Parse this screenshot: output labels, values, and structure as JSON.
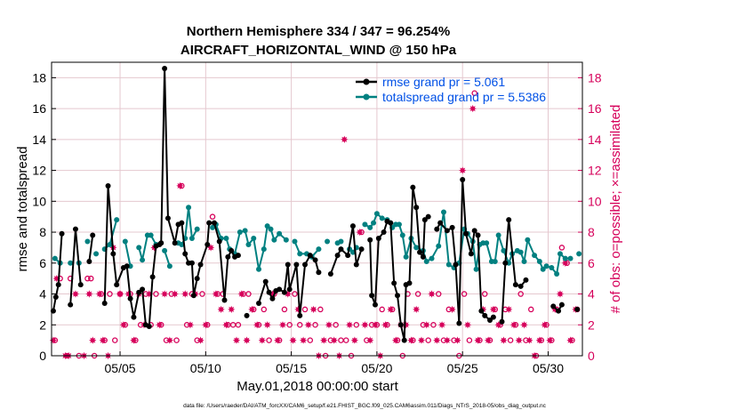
{
  "chart_data": {
    "type": "line",
    "title": "Northern Hemisphere 334 / 347 = 96.254%",
    "subtitle": "AIRCRAFT_HORIZONTAL_WIND @ 150 hPa",
    "xlabel": "May.01,2018 00:00:00 start",
    "ylabel": "rmse and totalspread",
    "y2label": "# of obs: o=possible; ×=assimilated",
    "footer": "data file: /Users/raeder/DAI/ATM_forcXX/CAM6_setup/f.e21.FHIST_BGC.f09_025.CAM6assim.011/Diags_NTrS_2018-05/obs_diag_output.nc",
    "xlim": [
      1.0,
      32.0
    ],
    "ylim": [
      0,
      19
    ],
    "y2lim": [
      0,
      19
    ],
    "xticks": [
      5,
      10,
      15,
      20,
      25,
      30
    ],
    "xticklabels": [
      "05/05",
      "05/10",
      "05/15",
      "05/20",
      "05/25",
      "05/30"
    ],
    "yticks": [
      0,
      2,
      4,
      6,
      8,
      10,
      12,
      14,
      16,
      18
    ],
    "y2ticks": [
      0,
      2,
      4,
      6,
      8,
      10,
      12,
      14,
      16,
      18
    ],
    "grid": true,
    "legend_position": "top-right",
    "series": [
      {
        "name": "rmse grand pr = 5.061",
        "color": "#000000",
        "marker": "dot",
        "x": [
          1.1,
          1.25,
          1.4,
          1.6,
          2.1,
          2.4,
          2.7,
          3.2,
          3.4,
          4.1,
          4.3,
          4.6,
          4.8,
          5.2,
          5.4,
          5.6,
          5.8,
          6.1,
          6.3,
          6.5,
          6.7,
          6.9,
          7.1,
          7.3,
          7.4,
          7.6,
          7.8,
          8.2,
          8.4,
          8.6,
          8.8,
          9.0,
          9.2,
          9.3,
          9.5,
          9.7,
          10.1,
          10.2,
          10.5,
          10.8,
          11.1,
          11.3,
          11.5,
          11.7,
          11.9,
          12.4,
          13.1,
          13.5,
          13.7,
          13.9,
          14.1,
          14.3,
          14.6,
          14.8,
          14.9,
          15.3,
          15.5,
          15.8,
          16.1,
          16.4,
          16.6,
          17.3,
          17.7,
          17.9,
          18.3,
          18.6,
          18.8,
          19.1,
          19.6,
          19.7,
          19.9,
          20.1,
          20.4,
          20.6,
          20.8,
          21.0,
          21.2,
          21.4,
          21.6,
          21.7,
          21.9,
          22.1,
          22.3,
          22.5,
          22.7,
          22.8,
          23.0,
          23.5,
          23.7,
          24.1,
          24.4,
          24.6,
          24.8,
          25.0,
          25.2,
          25.5,
          25.7,
          25.9,
          26.1,
          26.3,
          26.6,
          26.8,
          27.3,
          27.5,
          27.7,
          28.1,
          28.4,
          28.7,
          30.3,
          30.6,
          30.8,
          31.7
        ],
        "y": [
          2.9,
          3.8,
          4.6,
          7.9,
          3.3,
          8.2,
          4.6,
          6.1,
          7.8,
          3.4,
          11.0,
          6.6,
          4.6,
          5.7,
          5.8,
          3.7,
          2.5,
          4.1,
          4.3,
          2.0,
          1.9,
          5.1,
          7.1,
          7.2,
          7.3,
          18.6,
          8.9,
          7.3,
          8.5,
          8.6,
          6.6,
          6.0,
          6.0,
          3.9,
          5.0,
          5.9,
          7.2,
          8.6,
          8.6,
          7.4,
          3.6,
          6.4,
          6.8,
          6.4,
          6.5,
          2.6,
          3.4,
          4.8,
          4.1,
          3.7,
          4.2,
          4.3,
          4.1,
          5.9,
          4.3,
          5.9,
          2.6,
          5.9,
          6.5,
          6.2,
          5.4,
          5.3,
          6.5,
          6.9,
          6.5,
          8.4,
          5.9,
          6.9,
          7.5,
          3.9,
          3.3,
          7.6,
          8.0,
          8.7,
          8.6,
          4.7,
          3.9,
          2.0,
          1.0,
          4.6,
          4.7,
          10.9,
          9.6,
          6.7,
          6.4,
          8.8,
          9.0,
          8.2,
          8.6,
          8.1,
          8.3,
          5.9,
          2.1,
          11.4,
          7.9,
          6.6,
          8.1,
          7.8,
          2.9,
          2.6,
          2.3,
          2.5,
          2.2,
          6.0,
          8.8,
          4.6,
          4.5,
          4.9,
          3.2,
          2.9,
          3.3,
          3.0
        ]
      },
      {
        "name": "totalspread grand pr = 5.5386",
        "color": "#008080",
        "marker": "dot",
        "x": [
          1.2,
          1.5,
          2.1,
          2.6,
          3.1,
          3.6,
          4.1,
          4.4,
          4.8,
          5.3,
          5.6,
          6.1,
          6.3,
          6.6,
          6.8,
          7.1,
          7.6,
          7.9,
          8.4,
          8.6,
          8.8,
          9.0,
          9.2,
          9.5,
          10.4,
          10.6,
          10.9,
          11.2,
          11.4,
          11.7,
          12.0,
          12.3,
          12.5,
          12.8,
          13.1,
          13.4,
          13.6,
          13.8,
          14.0,
          14.3,
          14.7,
          15.2,
          15.5,
          15.9,
          16.2,
          16.6,
          17.1,
          17.7,
          17.9,
          18.4,
          18.6,
          18.8,
          19.3,
          19.6,
          19.8,
          20.0,
          20.3,
          20.6,
          20.9,
          21.1,
          21.3,
          21.5,
          21.7,
          22.0,
          22.3,
          22.7,
          22.9,
          23.2,
          23.6,
          23.9,
          24.2,
          24.5,
          24.8,
          25.1,
          25.3,
          25.6,
          25.8,
          26.0,
          26.2,
          26.4,
          26.7,
          26.9,
          27.1,
          27.4,
          27.7,
          27.9,
          28.2,
          28.4,
          28.6,
          28.8,
          29.2,
          29.5,
          29.7,
          29.9,
          30.2,
          30.5,
          30.7,
          31.0,
          31.3,
          31.8
        ],
        "y": [
          6.3,
          6.0,
          6.0,
          6.0,
          7.4,
          6.6,
          6.9,
          7.2,
          8.8,
          7.4,
          5.8,
          7.0,
          6.2,
          7.8,
          7.8,
          7.2,
          6.8,
          5.8,
          7.3,
          7.2,
          7.6,
          9.6,
          7.6,
          8.2,
          8.3,
          8.5,
          7.6,
          7.6,
          6.9,
          6.6,
          8.0,
          8.1,
          7.2,
          7.6,
          5.6,
          6.9,
          8.4,
          8.2,
          7.5,
          7.9,
          7.5,
          7.4,
          6.6,
          6.6,
          6.4,
          6.9,
          7.4,
          7.3,
          7.4,
          6.9,
          6.7,
          7.0,
          8.5,
          8.3,
          8.6,
          9.2,
          8.9,
          8.8,
          8.3,
          8.5,
          8.5,
          7.8,
          6.4,
          7.6,
          7.0,
          6.8,
          6.1,
          6.3,
          7.1,
          9.3,
          5.9,
          5.7,
          6.0,
          8.2,
          7.9,
          7.4,
          5.6,
          7.2,
          7.3,
          7.3,
          6.1,
          6.1,
          7.8,
          6.8,
          6.0,
          6.6,
          6.8,
          6.7,
          6.1,
          7.5,
          6.5,
          6.1,
          5.6,
          5.8,
          5.7,
          5.3,
          6.6,
          6.3,
          6.3,
          6.6
        ]
      },
      {
        "name": "obs possible",
        "axis": "right",
        "color": "#d6005a",
        "marker": "circle",
        "x": [
          1.2,
          1.5,
          1.9,
          2.1,
          2.6,
          3.1,
          3.3,
          3.5,
          3.9,
          4.1,
          4.4,
          4.7,
          5.0,
          5.3,
          5.6,
          5.9,
          6.2,
          6.5,
          6.8,
          7.1,
          7.4,
          7.7,
          8.0,
          8.3,
          8.6,
          8.9,
          9.2,
          9.5,
          9.8,
          10.1,
          10.4,
          10.7,
          11.0,
          11.3,
          11.6,
          11.9,
          12.2,
          12.5,
          12.8,
          13.1,
          13.4,
          13.7,
          14.0,
          14.3,
          14.6,
          14.9,
          15.2,
          15.5,
          15.8,
          16.1,
          16.4,
          16.7,
          17.0,
          17.3,
          17.6,
          17.9,
          18.2,
          18.5,
          18.8,
          19.1,
          19.4,
          19.7,
          20.0,
          20.3,
          20.6,
          20.9,
          21.2,
          21.5,
          21.8,
          22.1,
          22.4,
          22.7,
          23.0,
          23.3,
          23.6,
          23.9,
          24.2,
          24.5,
          24.8,
          25.1,
          25.4,
          25.7,
          26.0,
          26.3,
          26.6,
          26.9,
          27.2,
          27.5,
          27.8,
          28.1,
          28.4,
          28.7,
          29.0,
          29.3,
          29.6,
          29.9,
          30.2,
          30.5,
          30.8,
          31.1,
          31.4,
          31.7
        ],
        "y": [
          1,
          5,
          0,
          5,
          0,
          5,
          5,
          0,
          4,
          1,
          4,
          1,
          4,
          2,
          4,
          1,
          2,
          4,
          2,
          4,
          2,
          1,
          4,
          1,
          11,
          2,
          4,
          1,
          4,
          2,
          9,
          4,
          4,
          2,
          2,
          2,
          4,
          4,
          3,
          2,
          3,
          1,
          4,
          1,
          3,
          2,
          4,
          2,
          3,
          1,
          2,
          3,
          0,
          1,
          2,
          1,
          1,
          0,
          2,
          8,
          1,
          2,
          2,
          3,
          2,
          3,
          1,
          0,
          4,
          1,
          4,
          2,
          1,
          2,
          4,
          1,
          3,
          1,
          0,
          4,
          1,
          17,
          1,
          4,
          1,
          3,
          2,
          3,
          1,
          2,
          4,
          1,
          3,
          0,
          1,
          2,
          1,
          3,
          7,
          6,
          1,
          3
        ]
      },
      {
        "name": "obs assimilated",
        "axis": "right",
        "color": "#d6005a",
        "marker": "star",
        "x": [
          1.1,
          1.3,
          1.8,
          2.0,
          2.4,
          2.9,
          3.2,
          3.4,
          3.8,
          4.0,
          4.3,
          4.6,
          5.0,
          5.2,
          5.5,
          5.8,
          6.1,
          6.4,
          6.7,
          7.0,
          7.3,
          7.6,
          7.9,
          8.2,
          8.5,
          8.8,
          9.1,
          9.4,
          9.7,
          10.0,
          10.3,
          10.6,
          10.9,
          11.2,
          11.5,
          11.8,
          12.1,
          12.4,
          12.7,
          13.0,
          13.3,
          13.6,
          13.9,
          14.2,
          14.5,
          14.8,
          15.1,
          15.4,
          15.7,
          16.0,
          16.3,
          16.6,
          16.9,
          17.2,
          17.5,
          17.8,
          18.1,
          18.4,
          18.7,
          19.0,
          19.3,
          19.6,
          19.9,
          20.2,
          20.5,
          20.8,
          21.1,
          21.4,
          21.7,
          22.0,
          22.3,
          22.6,
          22.9,
          23.2,
          23.5,
          23.8,
          24.1,
          24.4,
          24.7,
          25.0,
          25.3,
          25.6,
          25.9,
          26.2,
          26.5,
          26.8,
          27.1,
          27.4,
          27.7,
          28.0,
          28.3,
          28.6,
          28.9,
          29.2,
          29.5,
          29.8,
          30.1,
          30.4,
          30.7,
          31.0,
          31.3,
          31.6
        ],
        "y": [
          1,
          5,
          0,
          0,
          4,
          0,
          4,
          1,
          4,
          1,
          0,
          7,
          4,
          2,
          4,
          1,
          4,
          2,
          4,
          7,
          2,
          4,
          1,
          4,
          11,
          4,
          2,
          4,
          1,
          2,
          7,
          4,
          3,
          2,
          3,
          1,
          4,
          1,
          3,
          2,
          1,
          2,
          4,
          1,
          2,
          4,
          1,
          3,
          1,
          2,
          3,
          0,
          1,
          2,
          1,
          0,
          14,
          2,
          1,
          8,
          2,
          1,
          2,
          0,
          2,
          3,
          1,
          2,
          2,
          1,
          3,
          1,
          2,
          4,
          1,
          2,
          1,
          3,
          1,
          12,
          2,
          16,
          1,
          3,
          1,
          3,
          2,
          1,
          3,
          2,
          1,
          2,
          1,
          0,
          1,
          2,
          1,
          3,
          4,
          6,
          1,
          3
        ]
      }
    ]
  }
}
